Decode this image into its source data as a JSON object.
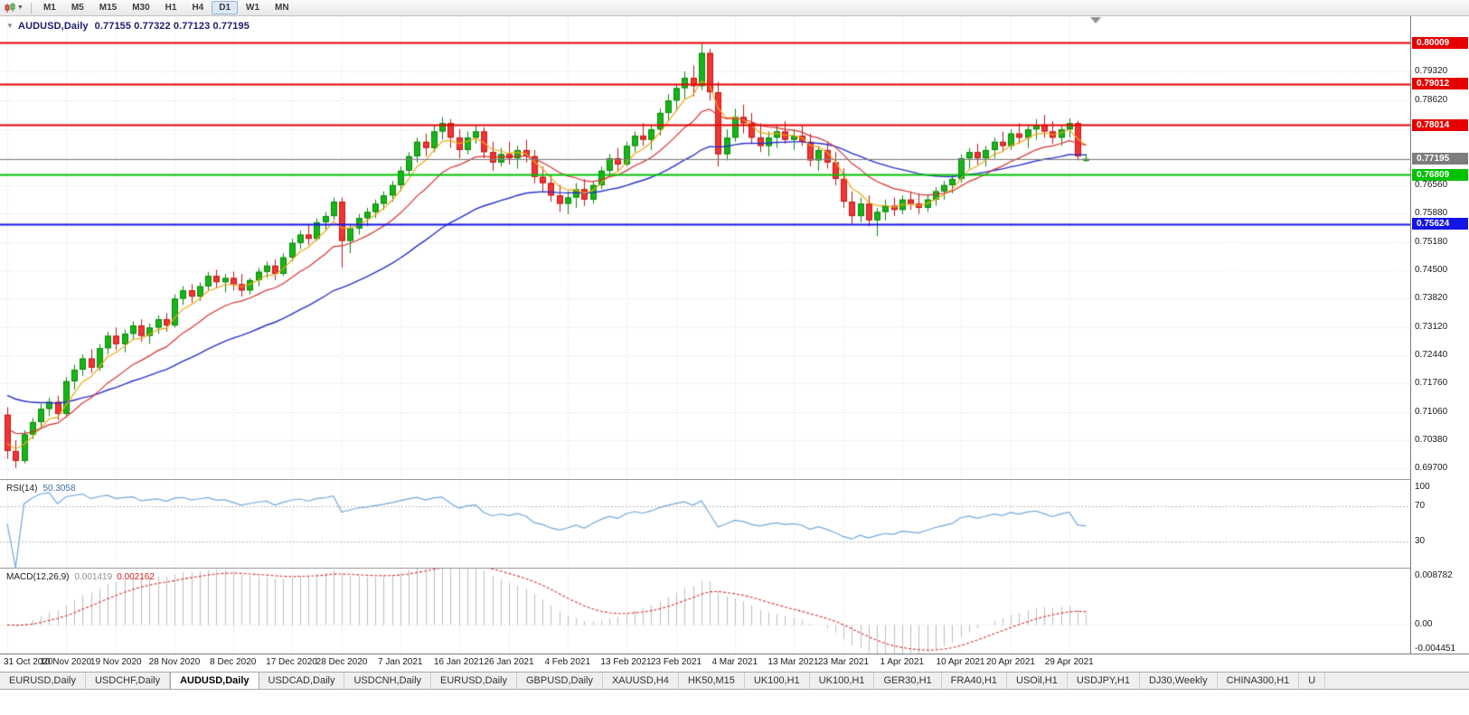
{
  "toolbar": {
    "timeframes": [
      "M1",
      "M5",
      "M15",
      "M30",
      "H1",
      "H4",
      "D1",
      "W1",
      "MN"
    ],
    "active_timeframe": "D1"
  },
  "icons": {
    "collapse_arrow": "▼",
    "dropdown": "▼"
  },
  "chart": {
    "name": "AUDUSD,Daily",
    "ohlc": "0.77155 0.77322 0.77123 0.77195",
    "open": "0.77155",
    "high": "0.77322",
    "low": "0.77123",
    "close": "0.77195"
  },
  "price_axis": {
    "labels": [
      "0.79320",
      "0.78620",
      "0.77920",
      "0.77220",
      "0.76560",
      "0.75880",
      "0.75180",
      "0.74500",
      "0.73820",
      "0.73120",
      "0.72440",
      "0.71760",
      "0.71060",
      "0.70380",
      "0.69700"
    ]
  },
  "levels": [
    {
      "price": 0.80009,
      "label": "0.80009",
      "color": "#e60000",
      "width": 2,
      "kind": "resistance-line"
    },
    {
      "price": 0.79012,
      "label": "0.79012",
      "color": "#e60000",
      "width": 2,
      "kind": "resistance-line"
    },
    {
      "price": 0.78014,
      "label": "0.78014",
      "color": "#e60000",
      "width": 2,
      "kind": "resistance-line"
    },
    {
      "price": 0.77195,
      "label": "0.77195",
      "color": "#7d7d7d",
      "width": 1,
      "kind": "bid-price-line"
    },
    {
      "price": 0.76809,
      "label": "0.76809",
      "color": "#00c100",
      "width": 2,
      "kind": "support-line"
    },
    {
      "price": 0.75624,
      "label": "0.75624",
      "color": "#1414e6",
      "width": 2,
      "kind": "support-line"
    }
  ],
  "time_axis": {
    "labels": [
      "31 Oct 2020",
      "10 Nov 2020",
      "19 Nov 2020",
      "28 Nov 2020",
      "8 Dec 2020",
      "17 Dec 2020",
      "28 Dec 2020",
      "7 Jan 2021",
      "16 Jan 2021",
      "26 Jan 2021",
      "4 Feb 2021",
      "13 Feb 2021",
      "23 Feb 2021",
      "4 Mar 2021",
      "13 Mar 2021",
      "23 Mar 2021",
      "1 Apr 2021",
      "10 Apr 2021",
      "20 Apr 2021",
      "29 Apr 2021"
    ],
    "bar_indices": [
      0,
      7,
      13,
      20,
      27,
      34,
      40,
      47,
      54,
      60,
      67,
      74,
      80,
      87,
      94,
      100,
      107,
      114,
      120,
      127
    ]
  },
  "chart_data": {
    "type": "candlestick",
    "symbol": "AUDUSD",
    "timeframe": "Daily",
    "price_range": {
      "min": 0.6944,
      "max": 0.8065
    },
    "overlays": [
      {
        "name": "ma-slow",
        "color": "#2730c8",
        "period": 34,
        "seed": 0.7155,
        "width": 1.4
      },
      {
        "name": "ma-fast",
        "color": "#eda713",
        "period": 5,
        "seed": 0.704,
        "width": 1.2
      },
      {
        "name": "ma-mid",
        "color": "#d93030",
        "period": 13,
        "seed": 0.7075,
        "width": 1.2
      }
    ],
    "candles": [
      [
        0.71,
        0.7118,
        0.6993,
        0.7012
      ],
      [
        0.7012,
        0.7038,
        0.6971,
        0.6988
      ],
      [
        0.6988,
        0.7062,
        0.6982,
        0.7052
      ],
      [
        0.7052,
        0.7092,
        0.7041,
        0.7082
      ],
      [
        0.7082,
        0.7126,
        0.707,
        0.7114
      ],
      [
        0.7114,
        0.7141,
        0.7096,
        0.7131
      ],
      [
        0.7131,
        0.7146,
        0.7087,
        0.7102
      ],
      [
        0.7102,
        0.7191,
        0.7097,
        0.7181
      ],
      [
        0.7181,
        0.7221,
        0.7161,
        0.7209
      ],
      [
        0.7209,
        0.7246,
        0.7194,
        0.7236
      ],
      [
        0.7236,
        0.7259,
        0.7201,
        0.7214
      ],
      [
        0.7214,
        0.7271,
        0.7206,
        0.7261
      ],
      [
        0.7261,
        0.7301,
        0.7246,
        0.7291
      ],
      [
        0.7291,
        0.7311,
        0.7256,
        0.7271
      ],
      [
        0.7271,
        0.7306,
        0.7251,
        0.7296
      ],
      [
        0.7296,
        0.7326,
        0.7281,
        0.7316
      ],
      [
        0.7316,
        0.7331,
        0.7276,
        0.7291
      ],
      [
        0.7291,
        0.7321,
        0.7271,
        0.7311
      ],
      [
        0.7311,
        0.7341,
        0.7296,
        0.7331
      ],
      [
        0.7331,
        0.7346,
        0.7301,
        0.7316
      ],
      [
        0.7316,
        0.7391,
        0.7311,
        0.7381
      ],
      [
        0.7381,
        0.7411,
        0.7366,
        0.7401
      ],
      [
        0.7401,
        0.7416,
        0.7371,
        0.7386
      ],
      [
        0.7386,
        0.7421,
        0.7376,
        0.7411
      ],
      [
        0.7411,
        0.7446,
        0.7401,
        0.7436
      ],
      [
        0.7436,
        0.7451,
        0.7406,
        0.7421
      ],
      [
        0.7421,
        0.7441,
        0.7396,
        0.7431
      ],
      [
        0.7431,
        0.7446,
        0.7401,
        0.7416
      ],
      [
        0.7416,
        0.7441,
        0.7386,
        0.7401
      ],
      [
        0.7401,
        0.7431,
        0.7391,
        0.7426
      ],
      [
        0.7426,
        0.7456,
        0.7411,
        0.7446
      ],
      [
        0.7446,
        0.7471,
        0.7431,
        0.7461
      ],
      [
        0.7461,
        0.7476,
        0.7426,
        0.7441
      ],
      [
        0.7441,
        0.7491,
        0.7436,
        0.7481
      ],
      [
        0.7481,
        0.7526,
        0.7471,
        0.7516
      ],
      [
        0.7516,
        0.7546,
        0.7501,
        0.7536
      ],
      [
        0.7536,
        0.7561,
        0.7511,
        0.7526
      ],
      [
        0.7526,
        0.7576,
        0.7521,
        0.7566
      ],
      [
        0.7566,
        0.7591,
        0.7546,
        0.7581
      ],
      [
        0.7581,
        0.7626,
        0.7571,
        0.7616
      ],
      [
        0.7616,
        0.7626,
        0.7456,
        0.7521
      ],
      [
        0.7521,
        0.7561,
        0.7491,
        0.7551
      ],
      [
        0.7551,
        0.7586,
        0.7536,
        0.7576
      ],
      [
        0.7576,
        0.7601,
        0.7556,
        0.7591
      ],
      [
        0.7591,
        0.7621,
        0.7576,
        0.7611
      ],
      [
        0.7611,
        0.7641,
        0.7596,
        0.7631
      ],
      [
        0.7631,
        0.7666,
        0.7616,
        0.7656
      ],
      [
        0.7656,
        0.7701,
        0.7641,
        0.7691
      ],
      [
        0.7691,
        0.7736,
        0.7681,
        0.7726
      ],
      [
        0.7726,
        0.7771,
        0.7711,
        0.7761
      ],
      [
        0.7761,
        0.7781,
        0.7726,
        0.7746
      ],
      [
        0.7746,
        0.7801,
        0.7736,
        0.7786
      ],
      [
        0.7786,
        0.7821,
        0.7766,
        0.7806
      ],
      [
        0.7806,
        0.7816,
        0.7746,
        0.7771
      ],
      [
        0.7771,
        0.7791,
        0.7721,
        0.7741
      ],
      [
        0.7741,
        0.7786,
        0.7731,
        0.7771
      ],
      [
        0.7771,
        0.7801,
        0.7756,
        0.7786
      ],
      [
        0.7786,
        0.7796,
        0.7721,
        0.7736
      ],
      [
        0.7736,
        0.7761,
        0.7691,
        0.7711
      ],
      [
        0.7711,
        0.7746,
        0.7701,
        0.7731
      ],
      [
        0.7731,
        0.7761,
        0.7706,
        0.7721
      ],
      [
        0.7721,
        0.7751,
        0.7696,
        0.7741
      ],
      [
        0.7741,
        0.7766,
        0.7711,
        0.7726
      ],
      [
        0.7726,
        0.7741,
        0.7661,
        0.7676
      ],
      [
        0.7676,
        0.7701,
        0.7641,
        0.7661
      ],
      [
        0.7661,
        0.7681,
        0.7616,
        0.7631
      ],
      [
        0.7631,
        0.7656,
        0.7591,
        0.7611
      ],
      [
        0.7611,
        0.7641,
        0.7586,
        0.7626
      ],
      [
        0.7626,
        0.7661,
        0.7601,
        0.7646
      ],
      [
        0.7646,
        0.7671,
        0.7606,
        0.7621
      ],
      [
        0.7621,
        0.7666,
        0.7611,
        0.7656
      ],
      [
        0.7656,
        0.7701,
        0.7646,
        0.7691
      ],
      [
        0.7691,
        0.7731,
        0.7676,
        0.7721
      ],
      [
        0.7721,
        0.7746,
        0.7691,
        0.7706
      ],
      [
        0.7706,
        0.7761,
        0.7701,
        0.7751
      ],
      [
        0.7751,
        0.7786,
        0.7736,
        0.7776
      ],
      [
        0.7776,
        0.7806,
        0.7751,
        0.7766
      ],
      [
        0.7766,
        0.7801,
        0.7741,
        0.7791
      ],
      [
        0.7791,
        0.7841,
        0.7776,
        0.7831
      ],
      [
        0.7831,
        0.7876,
        0.7811,
        0.7861
      ],
      [
        0.7861,
        0.7901,
        0.7836,
        0.7891
      ],
      [
        0.7891,
        0.7931,
        0.7866,
        0.7916
      ],
      [
        0.7916,
        0.7946,
        0.7871,
        0.7896
      ],
      [
        0.7896,
        0.8001,
        0.7886,
        0.7976
      ],
      [
        0.7976,
        0.7986,
        0.7861,
        0.7881
      ],
      [
        0.7881,
        0.7906,
        0.7701,
        0.7731
      ],
      [
        0.7731,
        0.7791,
        0.7716,
        0.7771
      ],
      [
        0.7771,
        0.7841,
        0.7761,
        0.7821
      ],
      [
        0.7821,
        0.7851,
        0.7781,
        0.7806
      ],
      [
        0.7806,
        0.7831,
        0.7756,
        0.7771
      ],
      [
        0.7771,
        0.7806,
        0.7736,
        0.7751
      ],
      [
        0.7751,
        0.7786,
        0.7726,
        0.7771
      ],
      [
        0.7771,
        0.7801,
        0.7746,
        0.7786
      ],
      [
        0.7786,
        0.7811,
        0.7756,
        0.7766
      ],
      [
        0.7766,
        0.7791,
        0.7741,
        0.7776
      ],
      [
        0.7776,
        0.7801,
        0.7751,
        0.7761
      ],
      [
        0.7761,
        0.7781,
        0.7701,
        0.7716
      ],
      [
        0.7716,
        0.7751,
        0.7691,
        0.7741
      ],
      [
        0.7741,
        0.7761,
        0.7696,
        0.7711
      ],
      [
        0.7711,
        0.7736,
        0.7656,
        0.7671
      ],
      [
        0.7671,
        0.7696,
        0.7601,
        0.7616
      ],
      [
        0.7616,
        0.7641,
        0.7561,
        0.7581
      ],
      [
        0.7581,
        0.7626,
        0.7566,
        0.7611
      ],
      [
        0.7611,
        0.7631,
        0.7556,
        0.7571
      ],
      [
        0.7571,
        0.7601,
        0.7532,
        0.7591
      ],
      [
        0.7591,
        0.7621,
        0.7571,
        0.7606
      ],
      [
        0.7606,
        0.7626,
        0.7581,
        0.7596
      ],
      [
        0.7596,
        0.7631,
        0.7586,
        0.7621
      ],
      [
        0.7621,
        0.7641,
        0.7596,
        0.7611
      ],
      [
        0.7611,
        0.7636,
        0.7586,
        0.7601
      ],
      [
        0.7601,
        0.7631,
        0.7591,
        0.7621
      ],
      [
        0.7621,
        0.7651,
        0.7606,
        0.7641
      ],
      [
        0.7641,
        0.7666,
        0.7621,
        0.7656
      ],
      [
        0.7656,
        0.7681,
        0.7636,
        0.7671
      ],
      [
        0.7671,
        0.7731,
        0.7661,
        0.7721
      ],
      [
        0.7721,
        0.7746,
        0.7696,
        0.7736
      ],
      [
        0.7736,
        0.7756,
        0.7706,
        0.7721
      ],
      [
        0.7721,
        0.7751,
        0.7701,
        0.7741
      ],
      [
        0.7741,
        0.7771,
        0.7721,
        0.7761
      ],
      [
        0.7761,
        0.7786,
        0.7736,
        0.7751
      ],
      [
        0.7751,
        0.7791,
        0.7741,
        0.7781
      ],
      [
        0.7781,
        0.7806,
        0.7756,
        0.7771
      ],
      [
        0.7771,
        0.7801,
        0.7746,
        0.7791
      ],
      [
        0.7791,
        0.7816,
        0.7766,
        0.7801
      ],
      [
        0.7801,
        0.7826,
        0.7771,
        0.7786
      ],
      [
        0.7786,
        0.7811,
        0.7756,
        0.7771
      ],
      [
        0.7771,
        0.7801,
        0.7751,
        0.7791
      ],
      [
        0.7791,
        0.7818,
        0.7771,
        0.7806
      ],
      [
        0.7806,
        0.7812,
        0.7716,
        0.7726
      ],
      [
        0.77155,
        0.77322,
        0.77123,
        0.77195
      ]
    ]
  },
  "rsi": {
    "name": "RSI(14)",
    "value": "50.3058",
    "period": 14,
    "axis_labels": [
      "100",
      "70",
      "30"
    ],
    "level_lines": [
      70,
      30
    ],
    "color": "#6fa8dc"
  },
  "macd": {
    "name": "MACD(12,26,9)",
    "value_main": "0.001419",
    "value_signal": "0.002162",
    "fast": 12,
    "slow": 26,
    "signal": 9,
    "axis_labels": [
      "0.008782",
      "0.00",
      "-0.004451"
    ],
    "range": {
      "min": -0.004451,
      "max": 0.008782
    },
    "histogram_color": "#bdbdbd",
    "signal_color": "#d93030"
  },
  "tabs": {
    "items": [
      "EURUSD,Daily",
      "USDCHF,Daily",
      "AUDUSD,Daily",
      "USDCAD,Daily",
      "USDCNH,Daily",
      "EURUSD,Daily",
      "GBPUSD,Daily",
      "XAUUSD,H4",
      "HK50,M15",
      "UK100,H1",
      "UK100,H1",
      "GER30,H1",
      "FRA40,H1",
      "USOil,H1",
      "USDJPY,H1",
      "DJ30,Weekly",
      "CHINA300,H1",
      "U"
    ],
    "active_index": 2
  },
  "colors": {
    "background": "#ffffff",
    "grid": "#d8d8d8",
    "candle_up": "#17b517",
    "candle_up_border": "#0a870a",
    "candle_down": "#f23434",
    "candle_down_border": "#bf1818",
    "axis_text": "#1a1a1a",
    "shift_marker": "#909090"
  }
}
